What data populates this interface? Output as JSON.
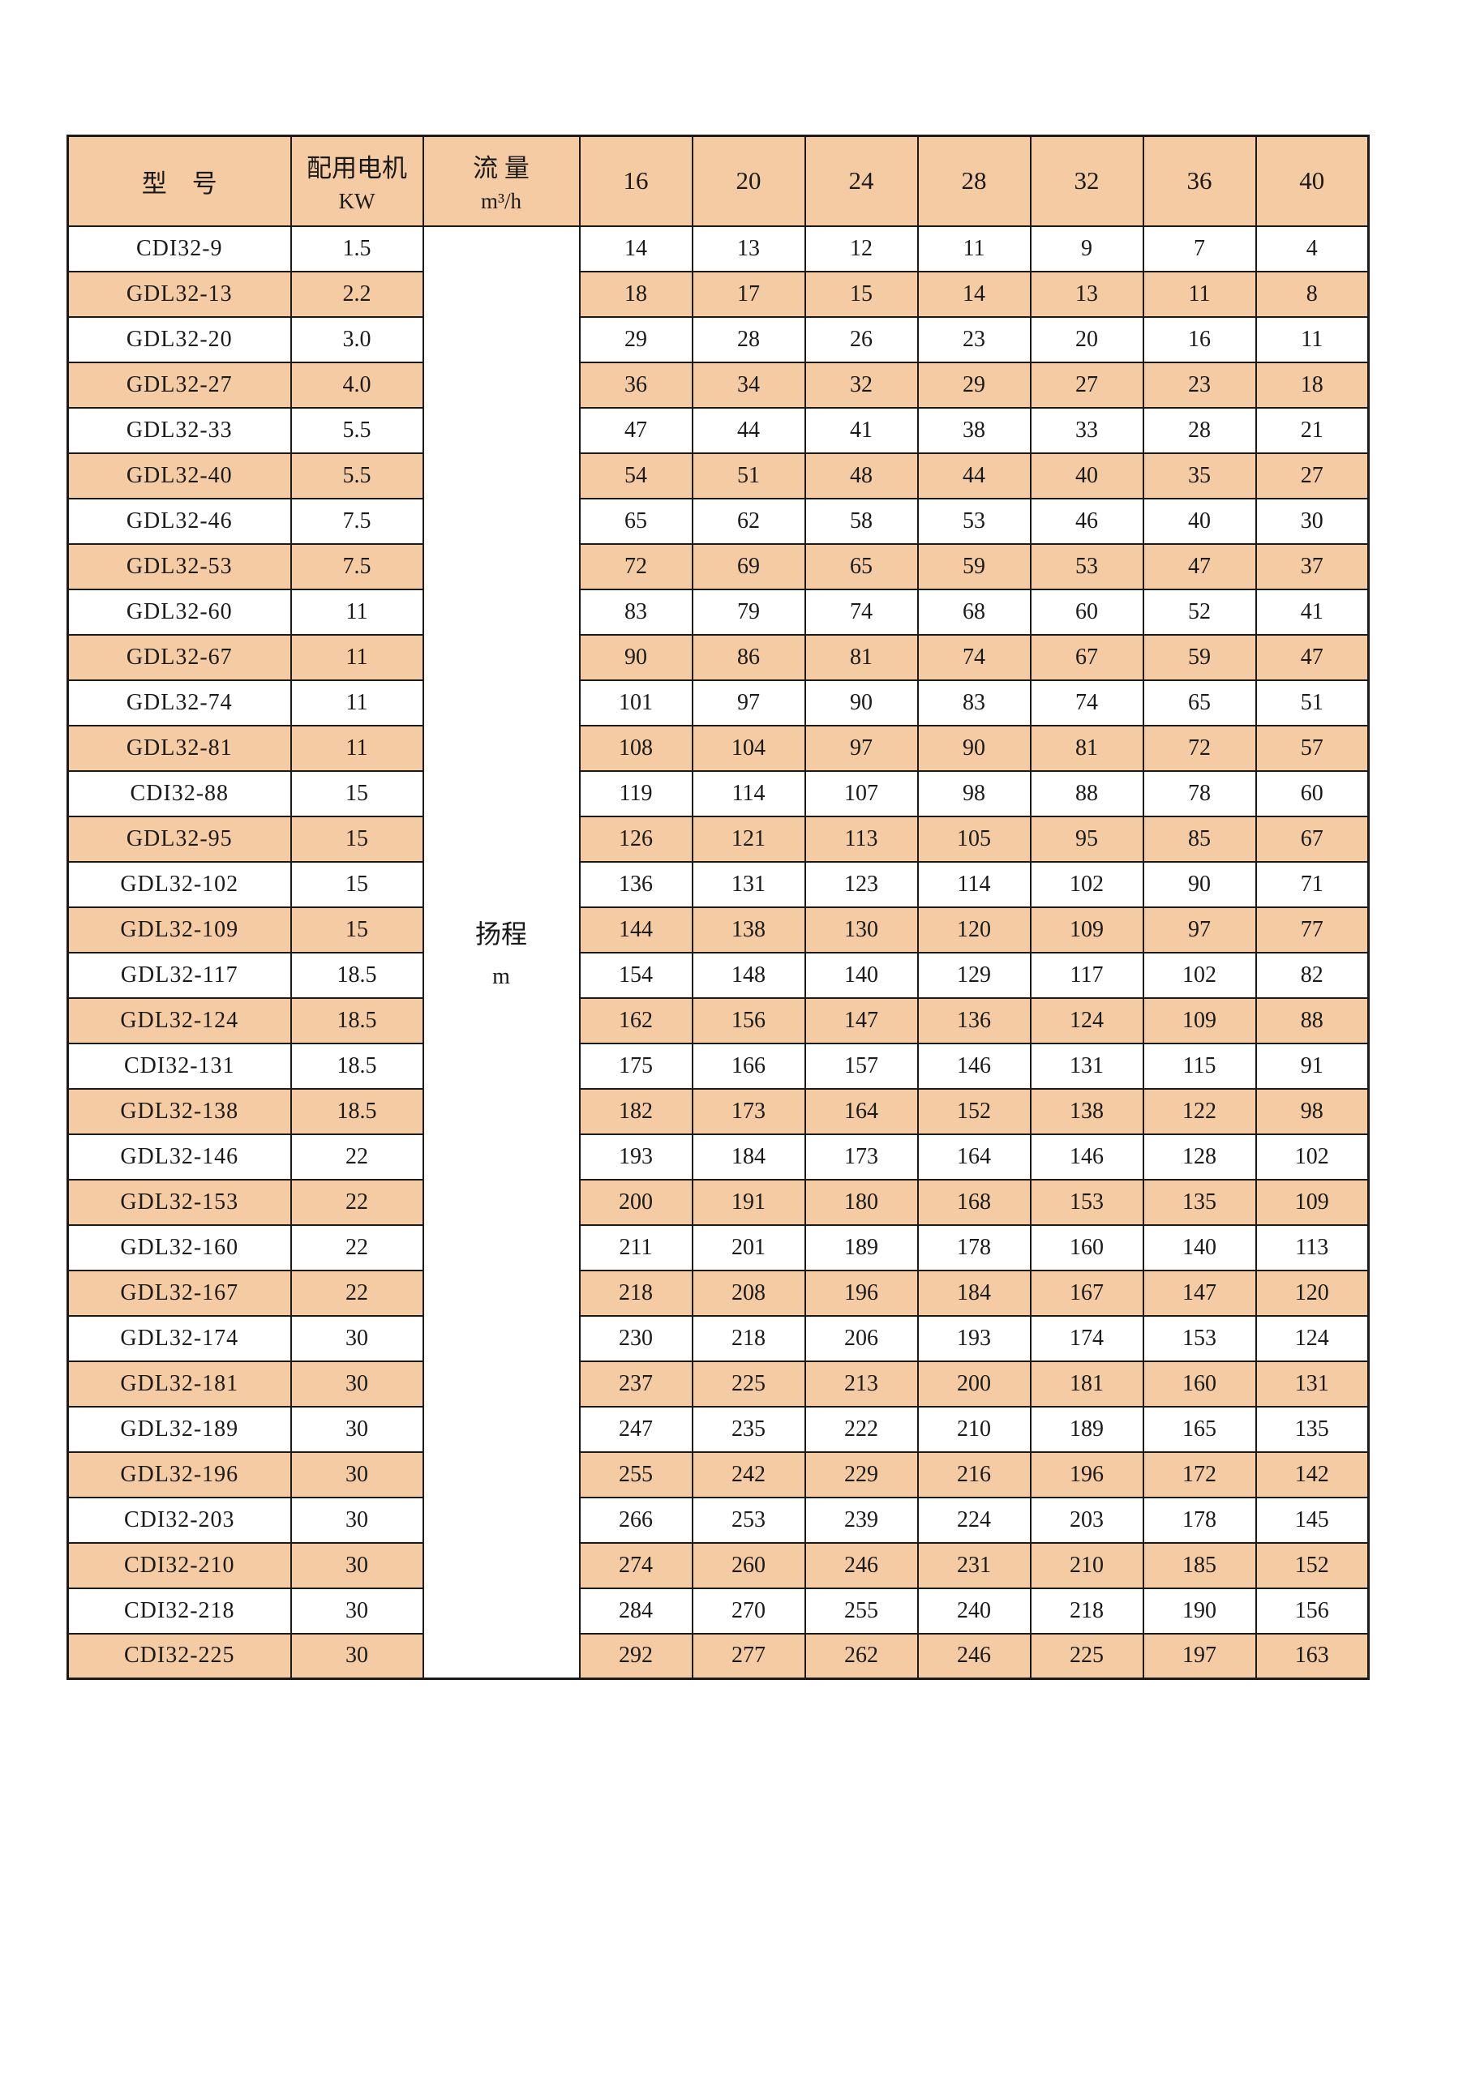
{
  "table": {
    "header": {
      "model_label": "型　号",
      "motor_label_line1": "配用电机",
      "motor_label_line2": "KW",
      "flow_label_line1": "流 量",
      "flow_label_line2": "m³/h",
      "flow_columns": [
        "16",
        "20",
        "24",
        "28",
        "32",
        "36",
        "40"
      ]
    },
    "merged_cell": {
      "line1": "扬程",
      "line2": "m"
    },
    "colors": {
      "stripe_bg": "#f5cba3",
      "header_bg": "#f5cba3",
      "border": "#1a1a1a",
      "text": "#1a1a1a",
      "page_bg": "#ffffff"
    },
    "rows": [
      {
        "model": "CDI32-9",
        "kw": "1.5",
        "heads": [
          14,
          13,
          12,
          11,
          9,
          7,
          4
        ]
      },
      {
        "model": "GDL32-13",
        "kw": "2.2",
        "heads": [
          18,
          17,
          15,
          14,
          13,
          11,
          8
        ]
      },
      {
        "model": "GDL32-20",
        "kw": "3.0",
        "heads": [
          29,
          28,
          26,
          23,
          20,
          16,
          11
        ]
      },
      {
        "model": "GDL32-27",
        "kw": "4.0",
        "heads": [
          36,
          34,
          32,
          29,
          27,
          23,
          18
        ]
      },
      {
        "model": "GDL32-33",
        "kw": "5.5",
        "heads": [
          47,
          44,
          41,
          38,
          33,
          28,
          21
        ]
      },
      {
        "model": "GDL32-40",
        "kw": "5.5",
        "heads": [
          54,
          51,
          48,
          44,
          40,
          35,
          27
        ]
      },
      {
        "model": "GDL32-46",
        "kw": "7.5",
        "heads": [
          65,
          62,
          58,
          53,
          46,
          40,
          30
        ]
      },
      {
        "model": "GDL32-53",
        "kw": "7.5",
        "heads": [
          72,
          69,
          65,
          59,
          53,
          47,
          37
        ]
      },
      {
        "model": "GDL32-60",
        "kw": "11",
        "heads": [
          83,
          79,
          74,
          68,
          60,
          52,
          41
        ]
      },
      {
        "model": "GDL32-67",
        "kw": "11",
        "heads": [
          90,
          86,
          81,
          74,
          67,
          59,
          47
        ]
      },
      {
        "model": "GDL32-74",
        "kw": "11",
        "heads": [
          101,
          97,
          90,
          83,
          74,
          65,
          51
        ]
      },
      {
        "model": "GDL32-81",
        "kw": "11",
        "heads": [
          108,
          104,
          97,
          90,
          81,
          72,
          57
        ]
      },
      {
        "model": "CDI32-88",
        "kw": "15",
        "heads": [
          119,
          114,
          107,
          98,
          88,
          78,
          60
        ]
      },
      {
        "model": "GDL32-95",
        "kw": "15",
        "heads": [
          126,
          121,
          113,
          105,
          95,
          85,
          67
        ]
      },
      {
        "model": "GDL32-102",
        "kw": "15",
        "heads": [
          136,
          131,
          123,
          114,
          102,
          90,
          71
        ]
      },
      {
        "model": "GDL32-109",
        "kw": "15",
        "heads": [
          144,
          138,
          130,
          120,
          109,
          97,
          77
        ]
      },
      {
        "model": "GDL32-117",
        "kw": "18.5",
        "heads": [
          154,
          148,
          140,
          129,
          117,
          102,
          82
        ]
      },
      {
        "model": "GDL32-124",
        "kw": "18.5",
        "heads": [
          162,
          156,
          147,
          136,
          124,
          109,
          88
        ]
      },
      {
        "model": "CDI32-131",
        "kw": "18.5",
        "heads": [
          175,
          166,
          157,
          146,
          131,
          115,
          91
        ]
      },
      {
        "model": "GDL32-138",
        "kw": "18.5",
        "heads": [
          182,
          173,
          164,
          152,
          138,
          122,
          98
        ]
      },
      {
        "model": "GDL32-146",
        "kw": "22",
        "heads": [
          193,
          184,
          173,
          164,
          146,
          128,
          102
        ]
      },
      {
        "model": "GDL32-153",
        "kw": "22",
        "heads": [
          200,
          191,
          180,
          168,
          153,
          135,
          109
        ]
      },
      {
        "model": "GDL32-160",
        "kw": "22",
        "heads": [
          211,
          201,
          189,
          178,
          160,
          140,
          113
        ]
      },
      {
        "model": "GDL32-167",
        "kw": "22",
        "heads": [
          218,
          208,
          196,
          184,
          167,
          147,
          120
        ]
      },
      {
        "model": "GDL32-174",
        "kw": "30",
        "heads": [
          230,
          218,
          206,
          193,
          174,
          153,
          124
        ]
      },
      {
        "model": "GDL32-181",
        "kw": "30",
        "heads": [
          237,
          225,
          213,
          200,
          181,
          160,
          131
        ]
      },
      {
        "model": "GDL32-189",
        "kw": "30",
        "heads": [
          247,
          235,
          222,
          210,
          189,
          165,
          135
        ]
      },
      {
        "model": "GDL32-196",
        "kw": "30",
        "heads": [
          255,
          242,
          229,
          216,
          196,
          172,
          142
        ]
      },
      {
        "model": "CDI32-203",
        "kw": "30",
        "heads": [
          266,
          253,
          239,
          224,
          203,
          178,
          145
        ]
      },
      {
        "model": "CDI32-210",
        "kw": "30",
        "heads": [
          274,
          260,
          246,
          231,
          210,
          185,
          152
        ]
      },
      {
        "model": "CDI32-218",
        "kw": "30",
        "heads": [
          284,
          270,
          255,
          240,
          218,
          190,
          156
        ]
      },
      {
        "model": "CDI32-225",
        "kw": "30",
        "heads": [
          292,
          277,
          262,
          246,
          225,
          197,
          163
        ]
      }
    ]
  }
}
